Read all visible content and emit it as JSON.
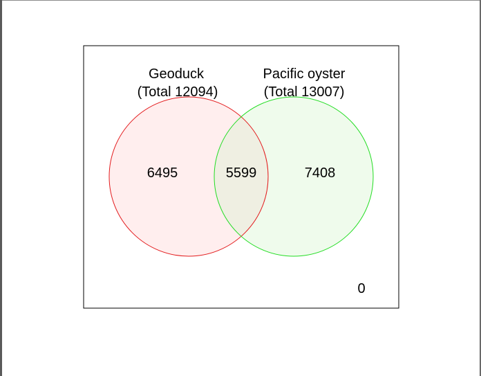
{
  "venn": {
    "sets": [
      {
        "name": "Geoduck",
        "total_label": "(Total 12094)",
        "unique_count": "6495",
        "color": "#e31a1c",
        "fill": "#ffeeee"
      },
      {
        "name": "Pacific oyster",
        "total_label": "(Total 13007)",
        "unique_count": "7408",
        "color": "#22dd22",
        "fill": "#effbec"
      }
    ],
    "intersection_count": "5599",
    "intersection_fill": "#efefe2",
    "outside_count": "0"
  }
}
